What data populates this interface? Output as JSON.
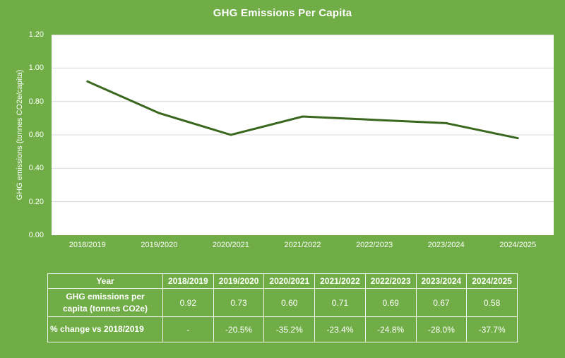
{
  "colors": {
    "background": "#70AD47",
    "plot_background": "#FFFFFF",
    "gridline": "#D9D9D9",
    "series_line": "#38671D",
    "text": "#FFFFFF",
    "table_border": "#EFF5EA"
  },
  "chart_data": {
    "type": "line",
    "title": "GHG Emissions Per Capita",
    "categories": [
      "2018/2019",
      "2019/2020",
      "2020/2021",
      "2021/2022",
      "2022/2023",
      "2023/2024",
      "2024/2025"
    ],
    "values": [
      0.92,
      0.73,
      0.6,
      0.71,
      0.69,
      0.67,
      0.58
    ],
    "xlabel": "",
    "ylabel": "GHG emissions (tonnes CO2e/capita)",
    "ylim": [
      0,
      1.2
    ],
    "ytick_labels": [
      "0.00",
      "0.20",
      "0.40",
      "0.60",
      "0.80",
      "1.00",
      "1.20"
    ],
    "grid": true,
    "legend": "none"
  },
  "table": {
    "header": [
      "Year",
      "2018/2019",
      "2019/2020",
      "2020/2021",
      "2021/2022",
      "2022/2023",
      "2023/2024",
      "2024/2025"
    ],
    "rows": [
      {
        "label": "GHG emissions per capita (tonnes CO2e)",
        "label_lines": [
          "GHG emissions per",
          "capita (tonnes CO2e)"
        ],
        "label_align": "center",
        "values": [
          "0.92",
          "0.73",
          "0.60",
          "0.71",
          "0.69",
          "0.67",
          "0.58"
        ]
      },
      {
        "label": "% change vs 2018/2019",
        "label_lines": [
          "% change vs 2018/2019"
        ],
        "label_align": "left",
        "values": [
          "-",
          "-20.5%",
          "-35.2%",
          "-23.4%",
          "-24.8%",
          "-28.0%",
          "-37.7%"
        ]
      }
    ]
  }
}
